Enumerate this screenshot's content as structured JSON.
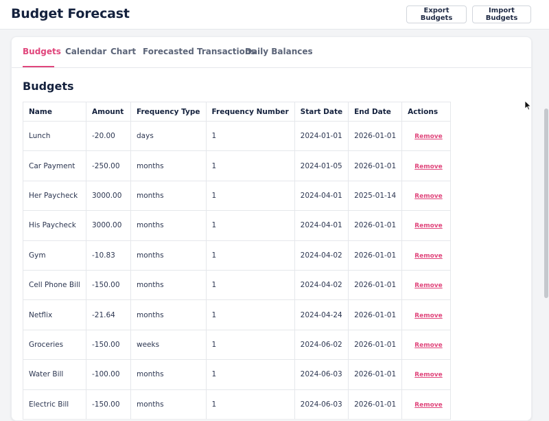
{
  "header": {
    "title": "Budget Forecast",
    "export_label": "Export Budgets",
    "import_label": "Import Budgets"
  },
  "tabs": [
    {
      "label": "Budgets",
      "active": true
    },
    {
      "label": "Calendar",
      "active": false
    },
    {
      "label": "Chart",
      "active": false
    },
    {
      "label": "Forecasted Transactions",
      "active": false
    },
    {
      "label": "Daily Balances",
      "active": false
    }
  ],
  "section_title": "Budgets",
  "table": {
    "columns": [
      "Name",
      "Amount",
      "Frequency Type",
      "Frequency Number",
      "Start Date",
      "End Date",
      "Actions"
    ],
    "rows": [
      [
        "Lunch",
        "-20.00",
        "days",
        "1",
        "2024-01-01",
        "2026-01-01",
        "Remove"
      ],
      [
        "Car Payment",
        "-250.00",
        "months",
        "1",
        "2024-01-05",
        "2026-01-01",
        "Remove"
      ],
      [
        "Her Paycheck",
        "3000.00",
        "months",
        "1",
        "2024-04-01",
        "2025-01-14",
        "Remove"
      ],
      [
        "His Paycheck",
        "3000.00",
        "months",
        "1",
        "2024-04-01",
        "2026-01-01",
        "Remove"
      ],
      [
        "Gym",
        "-10.83",
        "months",
        "1",
        "2024-04-02",
        "2026-01-01",
        "Remove"
      ],
      [
        "Cell Phone Bill",
        "-150.00",
        "months",
        "1",
        "2024-04-02",
        "2026-01-01",
        "Remove"
      ],
      [
        "Netflix",
        "-21.64",
        "months",
        "1",
        "2024-04-24",
        "2026-01-01",
        "Remove"
      ],
      [
        "Groceries",
        "-150.00",
        "weeks",
        "1",
        "2024-06-02",
        "2026-01-01",
        "Remove"
      ],
      [
        "Water Bill",
        "-100.00",
        "months",
        "1",
        "2024-06-03",
        "2026-01-01",
        "Remove"
      ],
      [
        "Electric Bill",
        "-150.00",
        "months",
        "1",
        "2024-06-03",
        "2026-01-01",
        "Remove"
      ]
    ]
  },
  "colors": {
    "accent": "#e0457b",
    "text": "#14213d"
  }
}
